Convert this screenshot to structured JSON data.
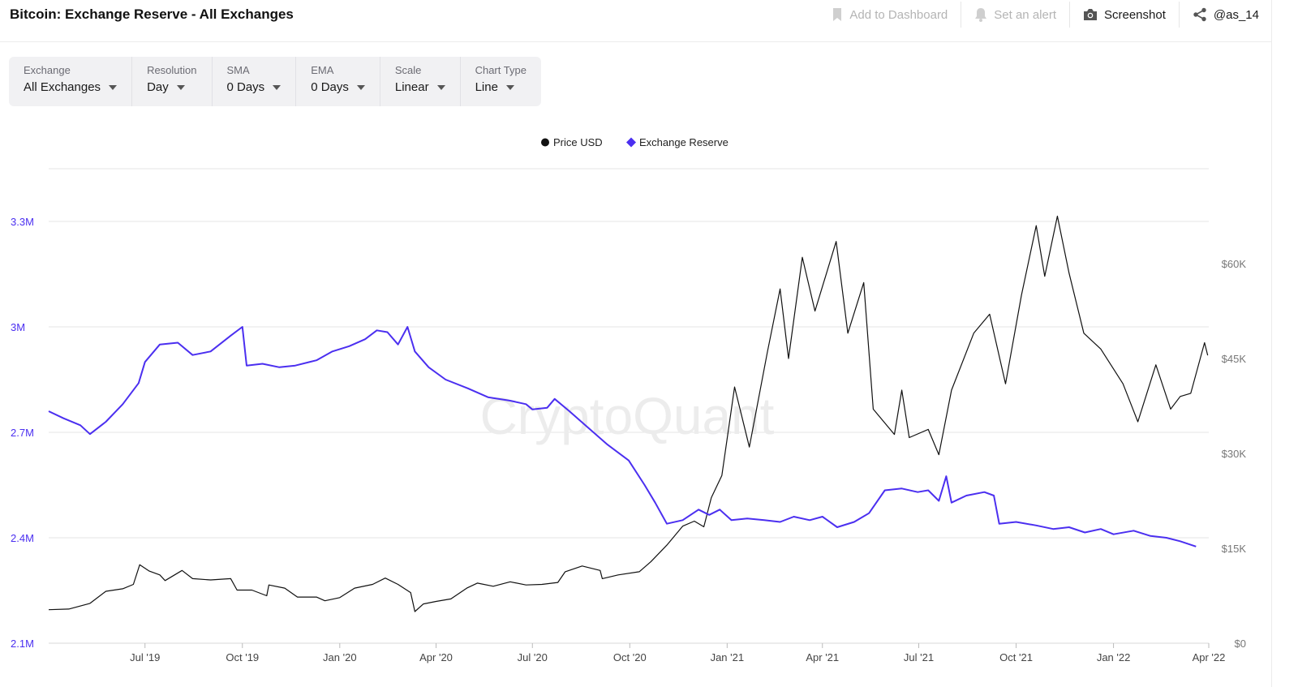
{
  "header": {
    "title": "Bitcoin: Exchange Reserve - All Exchanges",
    "actions": [
      {
        "label": "Add to Dashboard",
        "icon": "bookmark-icon",
        "enabled": false
      },
      {
        "label": "Set an alert",
        "icon": "bell-icon",
        "enabled": false
      },
      {
        "label": "Screenshot",
        "icon": "camera-icon",
        "enabled": true
      },
      {
        "label": "@as_14",
        "icon": "share-icon",
        "enabled": true
      }
    ]
  },
  "controls": [
    {
      "label": "Exchange",
      "value": "All Exchanges"
    },
    {
      "label": "Resolution",
      "value": "Day"
    },
    {
      "label": "SMA",
      "value": "0 Days"
    },
    {
      "label": "EMA",
      "value": "0 Days"
    },
    {
      "label": "Scale",
      "value": "Linear"
    },
    {
      "label": "Chart Type",
      "value": "Line"
    }
  ],
  "watermark": "CryptoQuant",
  "colors": {
    "price": "#111111",
    "reserve": "#4b2ff0",
    "grid": "#e6e6e6",
    "axis_left": "#4b2ff0",
    "axis_right": "#777777"
  },
  "chart_data": {
    "type": "line",
    "legend_position": "top-center",
    "grid": true,
    "x_range": [
      "2019-04-01",
      "2022-04-01"
    ],
    "x_ticks": [
      {
        "date": "2019-07-01",
        "label": "Jul '19"
      },
      {
        "date": "2019-10-01",
        "label": "Oct '19"
      },
      {
        "date": "2020-01-01",
        "label": "Jan '20"
      },
      {
        "date": "2020-04-01",
        "label": "Apr '20"
      },
      {
        "date": "2020-07-01",
        "label": "Jul '20"
      },
      {
        "date": "2020-10-01",
        "label": "Oct '20"
      },
      {
        "date": "2021-01-01",
        "label": "Jan '21"
      },
      {
        "date": "2021-04-01",
        "label": "Apr '21"
      },
      {
        "date": "2021-07-01",
        "label": "Jul '21"
      },
      {
        "date": "2021-10-01",
        "label": "Oct '21"
      },
      {
        "date": "2022-01-01",
        "label": "Jan '22"
      },
      {
        "date": "2022-04-01",
        "label": "Apr '22"
      }
    ],
    "y_left": {
      "ticks": [
        2100000,
        2400000,
        2700000,
        3000000,
        3300000
      ],
      "labels": [
        "2.1M",
        "2.4M",
        "2.7M",
        "3M",
        "3.3M"
      ],
      "range": [
        2100000,
        3450000
      ]
    },
    "y_right": {
      "ticks": [
        0,
        15000,
        30000,
        45000,
        60000
      ],
      "labels": [
        "$0",
        "$15K",
        "$30K",
        "$45K",
        "$60K"
      ],
      "range": [
        0,
        75000
      ]
    },
    "series": [
      {
        "name": "Price USD",
        "axis": "right",
        "marker": "circle",
        "points": [
          [
            "2019-04-01",
            5300
          ],
          [
            "2019-04-20",
            5400
          ],
          [
            "2019-05-10",
            6300
          ],
          [
            "2019-05-25",
            8200
          ],
          [
            "2019-06-10",
            8600
          ],
          [
            "2019-06-20",
            9300
          ],
          [
            "2019-06-26",
            12400
          ],
          [
            "2019-07-05",
            11400
          ],
          [
            "2019-07-15",
            10800
          ],
          [
            "2019-07-20",
            9900
          ],
          [
            "2019-08-05",
            11500
          ],
          [
            "2019-08-15",
            10200
          ],
          [
            "2019-09-01",
            10000
          ],
          [
            "2019-09-20",
            10200
          ],
          [
            "2019-09-26",
            8400
          ],
          [
            "2019-10-10",
            8400
          ],
          [
            "2019-10-24",
            7500
          ],
          [
            "2019-10-26",
            9200
          ],
          [
            "2019-11-10",
            8700
          ],
          [
            "2019-11-22",
            7300
          ],
          [
            "2019-12-10",
            7300
          ],
          [
            "2019-12-18",
            6700
          ],
          [
            "2020-01-01",
            7200
          ],
          [
            "2020-01-15",
            8700
          ],
          [
            "2020-02-01",
            9300
          ],
          [
            "2020-02-13",
            10300
          ],
          [
            "2020-02-25",
            9300
          ],
          [
            "2020-03-08",
            8000
          ],
          [
            "2020-03-12",
            5000
          ],
          [
            "2020-03-20",
            6200
          ],
          [
            "2020-04-01",
            6600
          ],
          [
            "2020-04-15",
            7000
          ],
          [
            "2020-04-30",
            8700
          ],
          [
            "2020-05-10",
            9500
          ],
          [
            "2020-05-25",
            9000
          ],
          [
            "2020-06-10",
            9700
          ],
          [
            "2020-06-25",
            9200
          ],
          [
            "2020-07-10",
            9300
          ],
          [
            "2020-07-25",
            9600
          ],
          [
            "2020-08-01",
            11300
          ],
          [
            "2020-08-17",
            12200
          ],
          [
            "2020-09-03",
            11500
          ],
          [
            "2020-09-05",
            10200
          ],
          [
            "2020-09-20",
            10800
          ],
          [
            "2020-10-10",
            11300
          ],
          [
            "2020-10-21",
            12900
          ],
          [
            "2020-11-05",
            15500
          ],
          [
            "2020-11-20",
            18500
          ],
          [
            "2020-12-01",
            19300
          ],
          [
            "2020-12-10",
            18400
          ],
          [
            "2020-12-17",
            23000
          ],
          [
            "2020-12-27",
            26500
          ],
          [
            "2021-01-08",
            40500
          ],
          [
            "2021-01-22",
            31000
          ],
          [
            "2021-02-08",
            46000
          ],
          [
            "2021-02-20",
            56000
          ],
          [
            "2021-02-28",
            45000
          ],
          [
            "2021-03-13",
            61000
          ],
          [
            "2021-03-25",
            52500
          ],
          [
            "2021-04-14",
            63500
          ],
          [
            "2021-04-25",
            49000
          ],
          [
            "2021-05-10",
            57000
          ],
          [
            "2021-05-19",
            37000
          ],
          [
            "2021-06-08",
            33000
          ],
          [
            "2021-06-15",
            40000
          ],
          [
            "2021-06-22",
            32500
          ],
          [
            "2021-07-10",
            33800
          ],
          [
            "2021-07-20",
            29800
          ],
          [
            "2021-08-01",
            40000
          ],
          [
            "2021-08-22",
            49000
          ],
          [
            "2021-09-06",
            52000
          ],
          [
            "2021-09-21",
            41000
          ],
          [
            "2021-10-06",
            55000
          ],
          [
            "2021-10-20",
            66000
          ],
          [
            "2021-10-28",
            58000
          ],
          [
            "2021-11-09",
            67500
          ],
          [
            "2021-11-20",
            58500
          ],
          [
            "2021-12-04",
            49000
          ],
          [
            "2021-12-20",
            46500
          ],
          [
            "2022-01-10",
            41000
          ],
          [
            "2022-01-24",
            35000
          ],
          [
            "2022-02-10",
            44000
          ],
          [
            "2022-02-24",
            37000
          ],
          [
            "2022-03-05",
            39000
          ],
          [
            "2022-03-15",
            39500
          ],
          [
            "2022-03-28",
            47500
          ],
          [
            "2022-03-31",
            45500
          ]
        ]
      },
      {
        "name": "Exchange Reserve",
        "axis": "left",
        "marker": "diamond",
        "points": [
          [
            "2019-04-01",
            2760000
          ],
          [
            "2019-04-15",
            2740000
          ],
          [
            "2019-05-01",
            2720000
          ],
          [
            "2019-05-10",
            2695000
          ],
          [
            "2019-05-25",
            2730000
          ],
          [
            "2019-06-10",
            2780000
          ],
          [
            "2019-06-25",
            2840000
          ],
          [
            "2019-07-01",
            2900000
          ],
          [
            "2019-07-15",
            2950000
          ],
          [
            "2019-08-01",
            2955000
          ],
          [
            "2019-08-15",
            2920000
          ],
          [
            "2019-09-01",
            2930000
          ],
          [
            "2019-09-20",
            2975000
          ],
          [
            "2019-10-01",
            3000000
          ],
          [
            "2019-10-05",
            2890000
          ],
          [
            "2019-10-20",
            2895000
          ],
          [
            "2019-11-05",
            2885000
          ],
          [
            "2019-11-20",
            2890000
          ],
          [
            "2019-12-10",
            2905000
          ],
          [
            "2019-12-25",
            2930000
          ],
          [
            "2020-01-10",
            2945000
          ],
          [
            "2020-01-25",
            2965000
          ],
          [
            "2020-02-05",
            2990000
          ],
          [
            "2020-02-15",
            2985000
          ],
          [
            "2020-02-25",
            2950000
          ],
          [
            "2020-03-05",
            3000000
          ],
          [
            "2020-03-12",
            2930000
          ],
          [
            "2020-03-25",
            2885000
          ],
          [
            "2020-04-10",
            2850000
          ],
          [
            "2020-05-01",
            2825000
          ],
          [
            "2020-05-20",
            2800000
          ],
          [
            "2020-06-10",
            2790000
          ],
          [
            "2020-06-25",
            2780000
          ],
          [
            "2020-07-01",
            2765000
          ],
          [
            "2020-07-15",
            2770000
          ],
          [
            "2020-07-22",
            2795000
          ],
          [
            "2020-08-05",
            2760000
          ],
          [
            "2020-08-20",
            2720000
          ],
          [
            "2020-09-10",
            2665000
          ],
          [
            "2020-09-30",
            2620000
          ],
          [
            "2020-10-15",
            2550000
          ],
          [
            "2020-10-25",
            2500000
          ],
          [
            "2020-11-05",
            2440000
          ],
          [
            "2020-11-20",
            2450000
          ],
          [
            "2020-12-05",
            2480000
          ],
          [
            "2020-12-15",
            2465000
          ],
          [
            "2020-12-25",
            2480000
          ],
          [
            "2021-01-05",
            2450000
          ],
          [
            "2021-01-20",
            2455000
          ],
          [
            "2021-02-05",
            2450000
          ],
          [
            "2021-02-20",
            2445000
          ],
          [
            "2021-03-05",
            2460000
          ],
          [
            "2021-03-20",
            2450000
          ],
          [
            "2021-04-01",
            2460000
          ],
          [
            "2021-04-15",
            2430000
          ],
          [
            "2021-05-01",
            2445000
          ],
          [
            "2021-05-15",
            2470000
          ],
          [
            "2021-05-30",
            2535000
          ],
          [
            "2021-06-15",
            2540000
          ],
          [
            "2021-06-30",
            2530000
          ],
          [
            "2021-07-10",
            2535000
          ],
          [
            "2021-07-20",
            2505000
          ],
          [
            "2021-07-27",
            2575000
          ],
          [
            "2021-08-01",
            2500000
          ],
          [
            "2021-08-15",
            2520000
          ],
          [
            "2021-09-01",
            2530000
          ],
          [
            "2021-09-10",
            2520000
          ],
          [
            "2021-09-15",
            2440000
          ],
          [
            "2021-10-01",
            2445000
          ],
          [
            "2021-10-20",
            2435000
          ],
          [
            "2021-11-05",
            2425000
          ],
          [
            "2021-11-20",
            2430000
          ],
          [
            "2021-12-05",
            2415000
          ],
          [
            "2021-12-20",
            2425000
          ],
          [
            "2022-01-01",
            2410000
          ],
          [
            "2022-01-20",
            2420000
          ],
          [
            "2022-02-05",
            2405000
          ],
          [
            "2022-02-20",
            2400000
          ],
          [
            "2022-03-05",
            2390000
          ],
          [
            "2022-03-20",
            2375000
          ]
        ]
      }
    ]
  }
}
